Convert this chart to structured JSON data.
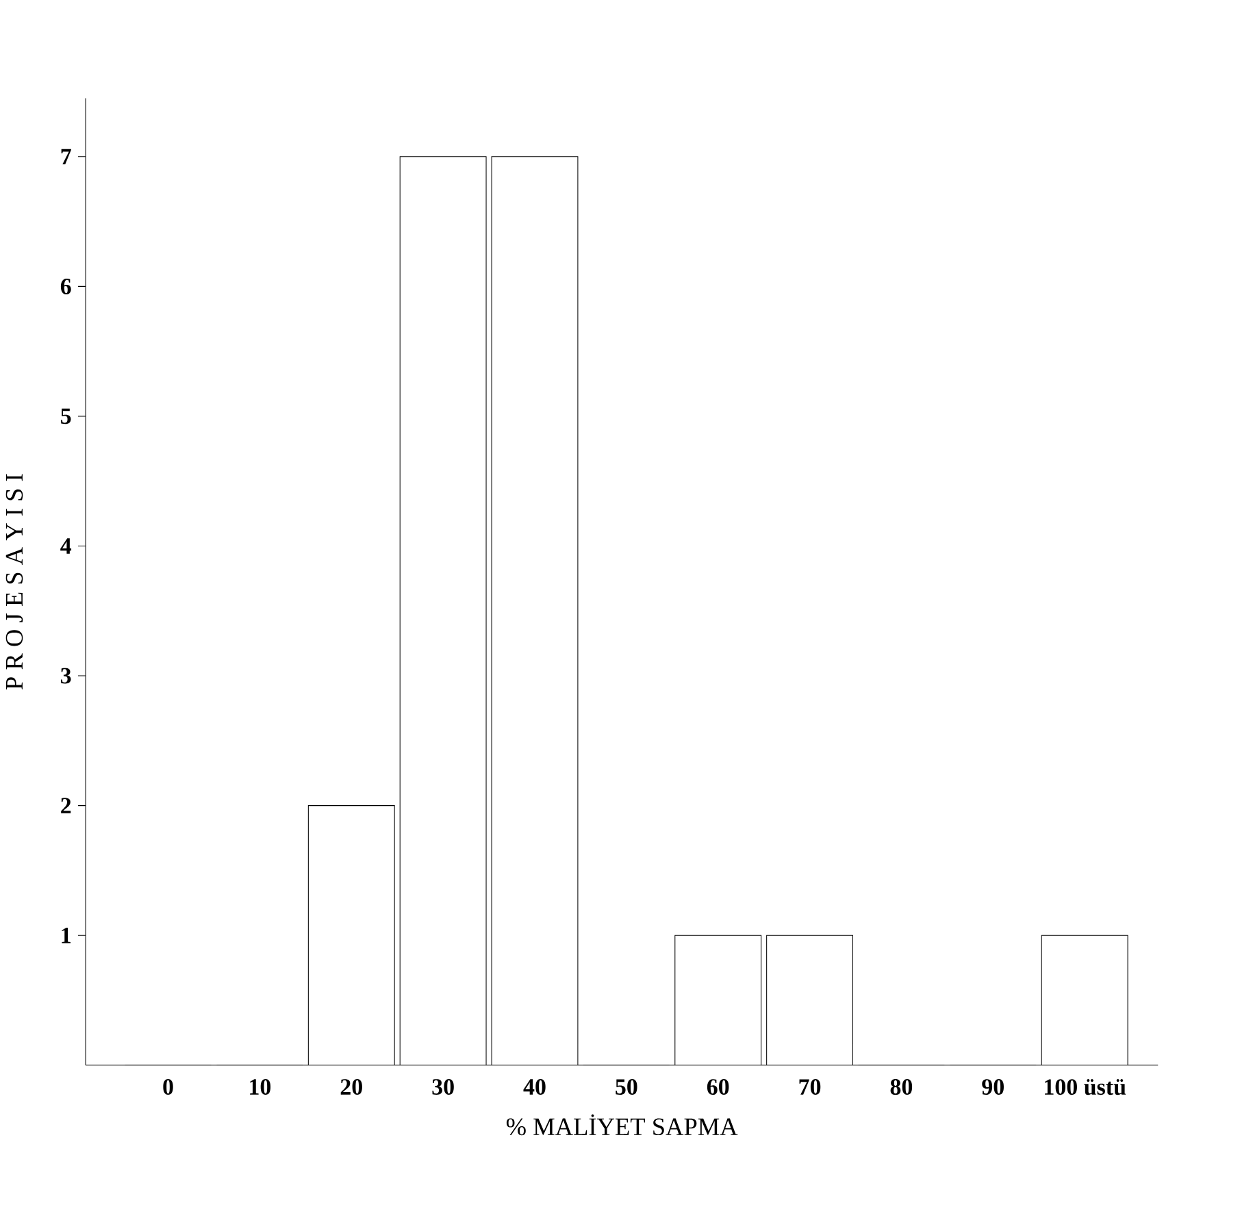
{
  "chart_data": {
    "type": "bar",
    "xlabel": "% MALİYET SAPMA",
    "ylabel": "P R O J E   S A Y I S I",
    "categories": [
      "0",
      "10",
      "20",
      "30",
      "40",
      "50",
      "60",
      "70",
      "80",
      "90",
      "100 üstü"
    ],
    "values": [
      0,
      0,
      2,
      7,
      7,
      0,
      1,
      1,
      0,
      0,
      1
    ],
    "color": "#ffffff",
    "ylim": [
      0,
      7.45
    ],
    "yticks": [
      1,
      2,
      3,
      4,
      5,
      6,
      7
    ]
  }
}
